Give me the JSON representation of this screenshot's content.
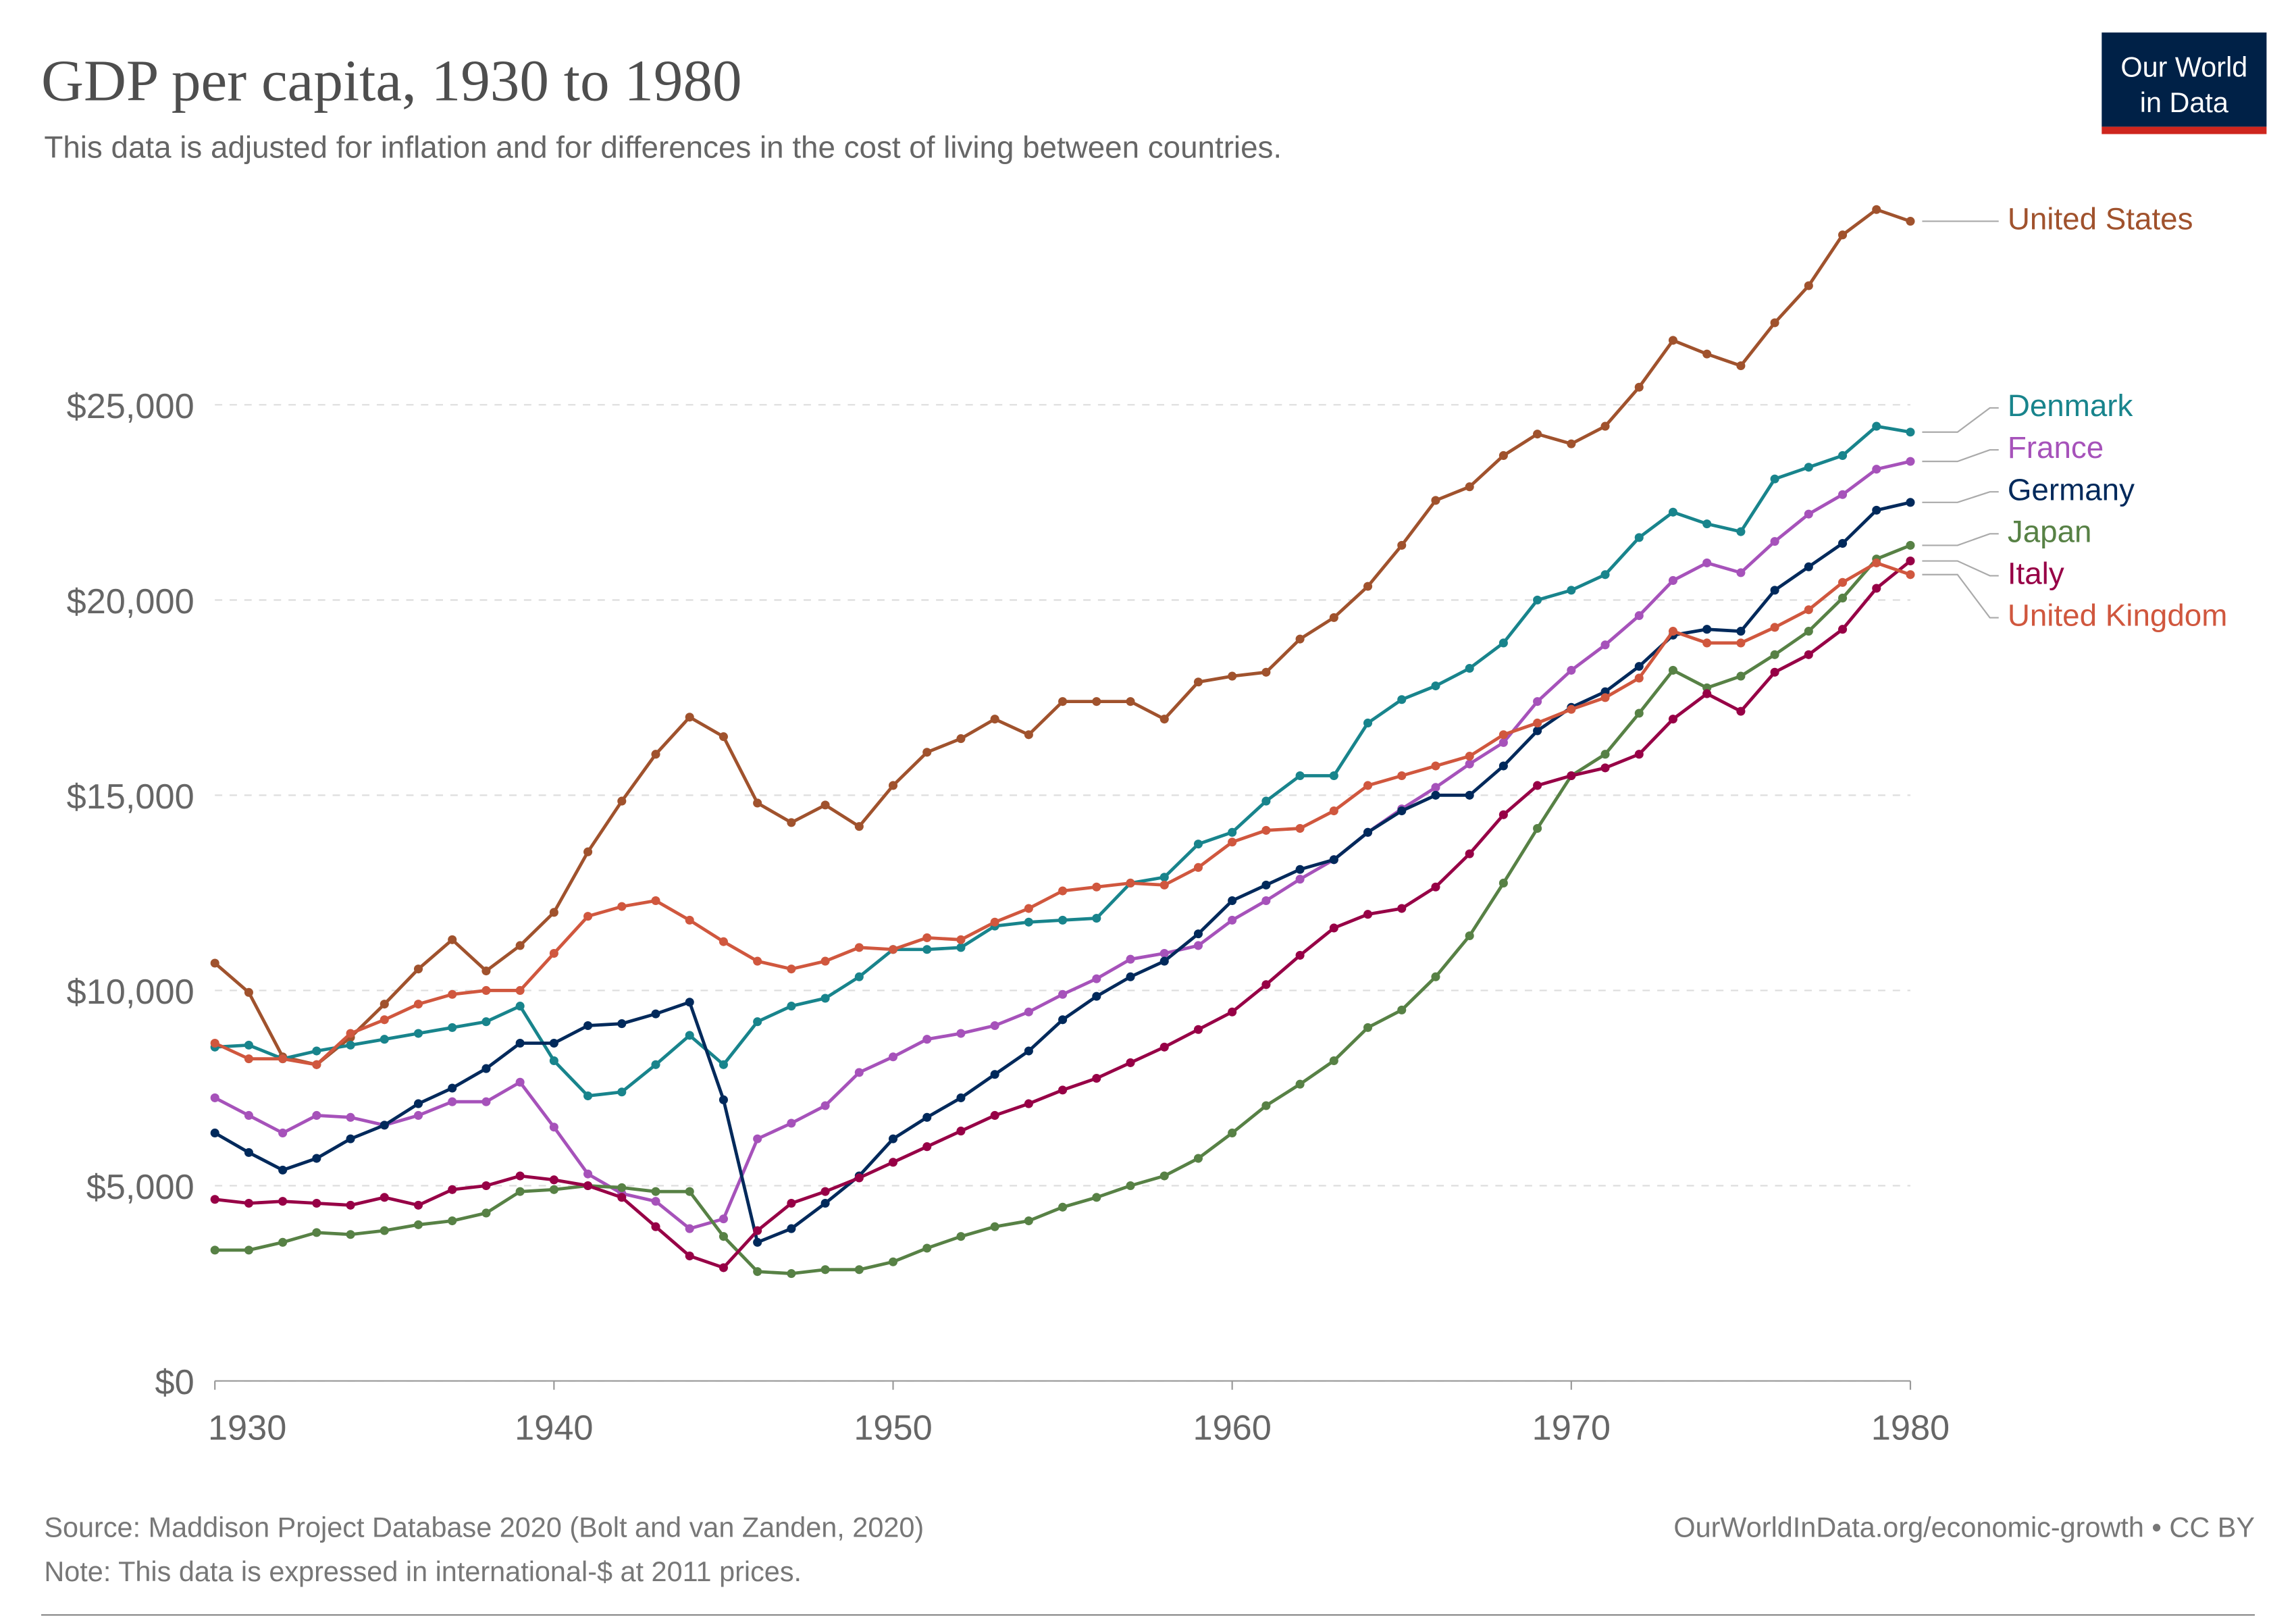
{
  "chart_data": {
    "type": "line",
    "title": "GDP per capita, 1930 to 1980",
    "subtitle": "This data is adjusted for inflation and for differences in the cost of living between countries.",
    "logo": [
      "Our World",
      "in Data"
    ],
    "source": "Source: Maddison Project Database 2020 (Bolt and van Zanden, 2020)",
    "note": "Note: This data is expressed in international-$ at 2011 prices.",
    "credit": "OurWorldInData.org/economic-growth • CC BY",
    "x": [
      1930,
      1931,
      1932,
      1933,
      1934,
      1935,
      1936,
      1937,
      1938,
      1939,
      1940,
      1941,
      1942,
      1943,
      1944,
      1945,
      1946,
      1947,
      1948,
      1949,
      1950,
      1951,
      1952,
      1953,
      1954,
      1955,
      1956,
      1957,
      1958,
      1959,
      1960,
      1961,
      1962,
      1963,
      1964,
      1965,
      1966,
      1967,
      1968,
      1969,
      1970,
      1971,
      1972,
      1973,
      1974,
      1975,
      1976,
      1977,
      1978,
      1979,
      1980
    ],
    "xlim": [
      1930,
      1980
    ],
    "xticks": [
      1930,
      1940,
      1950,
      1960,
      1970,
      1980
    ],
    "ylim": [
      0,
      30500
    ],
    "yticks": [
      {
        "value": 0,
        "label": "$0"
      },
      {
        "value": 5000,
        "label": "$5,000"
      },
      {
        "value": 10000,
        "label": "$10,000"
      },
      {
        "value": 15000,
        "label": "$15,000"
      },
      {
        "value": 20000,
        "label": "$20,000"
      },
      {
        "value": 25000,
        "label": "$25,000"
      }
    ],
    "grid": true,
    "series": [
      {
        "name": "United States",
        "color": "#a0522d",
        "values": [
          10700,
          9950,
          8300,
          8100,
          8800,
          9650,
          10550,
          11300,
          10500,
          11150,
          12000,
          13550,
          14850,
          16050,
          17000,
          16500,
          14800,
          14300,
          14750,
          14200,
          15250,
          16100,
          16450,
          16950,
          16550,
          17400,
          17400,
          17400,
          16950,
          17900,
          18050,
          18150,
          19000,
          19550,
          20350,
          21400,
          22550,
          22900,
          23700,
          24250,
          24000,
          24450,
          25450,
          26650,
          26300,
          26000,
          27100,
          28050,
          29350,
          30000,
          29700
        ]
      },
      {
        "name": "Denmark",
        "color": "#18848c",
        "values": [
          8550,
          8600,
          8250,
          8450,
          8600,
          8750,
          8900,
          9050,
          9200,
          9600,
          8200,
          7300,
          7400,
          8100,
          8850,
          8100,
          9200,
          9600,
          9800,
          10350,
          11050,
          11050,
          11100,
          11650,
          11750,
          11800,
          11850,
          12750,
          12900,
          13750,
          14050,
          14850,
          15500,
          15500,
          16850,
          17450,
          17800,
          18250,
          18900,
          20000,
          20250,
          20650,
          21600,
          22250,
          21950,
          21750,
          23100,
          23400,
          23700,
          24450,
          24300
        ]
      },
      {
        "name": "France",
        "color": "#a652ba",
        "values": [
          7250,
          6800,
          6350,
          6800,
          6750,
          6550,
          6800,
          7150,
          7150,
          7650,
          6500,
          5300,
          4800,
          4600,
          3900,
          4150,
          6200,
          6600,
          7050,
          7900,
          8300,
          8750,
          8900,
          9100,
          9450,
          9900,
          10300,
          10800,
          10950,
          11150,
          11800,
          12300,
          12850,
          13350,
          14050,
          14650,
          15200,
          15800,
          16350,
          17400,
          18200,
          18850,
          19600,
          20500,
          20950,
          20700,
          21500,
          22200,
          22700,
          23350,
          23550
        ]
      },
      {
        "name": "Germany",
        "color": "#00295b",
        "values": [
          6350,
          5850,
          5400,
          5700,
          6200,
          6550,
          7100,
          7500,
          8000,
          8650,
          8650,
          9100,
          9150,
          9400,
          9700,
          7200,
          3550,
          3900,
          4550,
          5250,
          6200,
          6750,
          7250,
          7850,
          8450,
          9250,
          9850,
          10350,
          10750,
          11450,
          12300,
          12700,
          13100,
          13350,
          14050,
          14600,
          15000,
          15000,
          15750,
          16650,
          17250,
          17650,
          18300,
          19100,
          19250,
          19200,
          20250,
          20850,
          21450,
          22300,
          22500
        ]
      },
      {
        "name": "Japan",
        "color": "#578145",
        "values": [
          3350,
          3350,
          3550,
          3800,
          3750,
          3850,
          4000,
          4100,
          4300,
          4850,
          4900,
          5000,
          4950,
          4850,
          4850,
          3700,
          2800,
          2750,
          2850,
          2850,
          3050,
          3400,
          3700,
          3950,
          4100,
          4450,
          4700,
          5000,
          5250,
          5700,
          6350,
          7050,
          7600,
          8200,
          9050,
          9500,
          10350,
          11400,
          12750,
          14150,
          15500,
          16050,
          17100,
          18200,
          17750,
          18050,
          18600,
          19200,
          20050,
          21050,
          21400
        ]
      },
      {
        "name": "Italy",
        "color": "#970046",
        "values": [
          4650,
          4550,
          4600,
          4550,
          4500,
          4700,
          4500,
          4900,
          5000,
          5250,
          5150,
          5000,
          4700,
          3950,
          3200,
          2900,
          3850,
          4550,
          4850,
          5200,
          5600,
          6000,
          6400,
          6800,
          7100,
          7450,
          7750,
          8150,
          8550,
          9000,
          9450,
          10150,
          10900,
          11600,
          11950,
          12100,
          12650,
          13500,
          14500,
          15250,
          15500,
          15700,
          16050,
          16950,
          17600,
          17150,
          18150,
          18600,
          19250,
          20300,
          21000
        ]
      },
      {
        "name": "United Kingdom",
        "color": "#d0573e",
        "values": [
          8650,
          8250,
          8250,
          8100,
          8900,
          9250,
          9650,
          9900,
          10000,
          10000,
          10950,
          11900,
          12150,
          12300,
          11800,
          11250,
          10750,
          10550,
          10750,
          11100,
          11050,
          11350,
          11300,
          11750,
          12100,
          12550,
          12650,
          12750,
          12700,
          13150,
          13800,
          14100,
          14150,
          14600,
          15250,
          15500,
          15750,
          16000,
          16550,
          16850,
          17200,
          17500,
          18000,
          19200,
          18900,
          18900,
          19300,
          19750,
          20450,
          20950,
          20650
        ]
      }
    ]
  }
}
